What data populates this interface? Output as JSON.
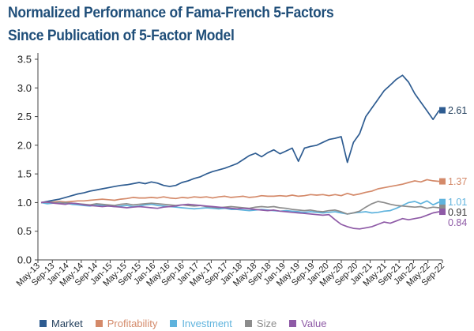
{
  "title_line1": "Normalized Performance of Fama-French 5-Factors",
  "title_line2": "Since Publication of 5-Factor Model",
  "colors": {
    "Market": "#2e5c91",
    "Profitability": "#d48a6a",
    "Investment": "#5fb3dd",
    "Size": "#8c8c8c",
    "Value": "#8e5aa6"
  },
  "chart_data": {
    "type": "line",
    "title": "Normalized Performance of Fama-French 5-Factors",
    "subtitle": "Since Publication of 5-Factor Model",
    "xlabel": "",
    "ylabel": "",
    "ylim": [
      0.0,
      3.5
    ],
    "yticks": [
      0.0,
      0.5,
      1.0,
      1.5,
      2.0,
      2.5,
      3.0,
      3.5
    ],
    "ytick_labels": [
      "0.0",
      "0.5",
      "1.0",
      "1.5",
      "2.0",
      "2.5",
      "3.0",
      "3.5"
    ],
    "xlim": [
      "May-13",
      "Sep-22"
    ],
    "xtick_labels": [
      "May-13",
      "Sep-13",
      "Jan-14",
      "May-14",
      "Sep-14",
      "Jan-15",
      "May-15",
      "Sep-15",
      "Jan-16",
      "May-16",
      "Sep-16",
      "Jan-17",
      "May-17",
      "Sep-17",
      "Jan-18",
      "May-18",
      "Sep-18",
      "Jan-19",
      "May-19",
      "Sep-19",
      "Jan-20",
      "May-20",
      "Sep-20",
      "Jan-21",
      "May-21",
      "Sep-21",
      "Jan-22",
      "May-22",
      "Sep-22"
    ],
    "grid": false,
    "legend_position": "bottom",
    "series": [
      {
        "name": "Market",
        "end_label": "2.61",
        "values": [
          1.0,
          1.02,
          1.04,
          1.06,
          1.09,
          1.12,
          1.15,
          1.17,
          1.2,
          1.22,
          1.24,
          1.26,
          1.28,
          1.3,
          1.31,
          1.33,
          1.35,
          1.33,
          1.36,
          1.34,
          1.3,
          1.28,
          1.3,
          1.35,
          1.38,
          1.42,
          1.45,
          1.5,
          1.54,
          1.57,
          1.6,
          1.64,
          1.68,
          1.75,
          1.82,
          1.86,
          1.8,
          1.87,
          1.92,
          1.85,
          1.9,
          1.95,
          1.72,
          1.95,
          1.98,
          2.0,
          2.05,
          2.1,
          2.12,
          2.15,
          1.7,
          2.05,
          2.2,
          2.5,
          2.65,
          2.8,
          2.95,
          3.05,
          3.15,
          3.22,
          3.1,
          2.9,
          2.75,
          2.6,
          2.45,
          2.61
        ]
      },
      {
        "name": "Profitability",
        "end_label": "1.37",
        "values": [
          1.0,
          1.0,
          1.01,
          1.02,
          1.01,
          1.02,
          1.03,
          1.03,
          1.04,
          1.05,
          1.06,
          1.05,
          1.04,
          1.06,
          1.07,
          1.09,
          1.08,
          1.08,
          1.09,
          1.08,
          1.1,
          1.08,
          1.07,
          1.09,
          1.08,
          1.1,
          1.09,
          1.1,
          1.08,
          1.1,
          1.11,
          1.09,
          1.1,
          1.11,
          1.09,
          1.1,
          1.12,
          1.11,
          1.11,
          1.12,
          1.11,
          1.13,
          1.11,
          1.12,
          1.14,
          1.13,
          1.14,
          1.12,
          1.14,
          1.12,
          1.16,
          1.13,
          1.15,
          1.18,
          1.2,
          1.24,
          1.26,
          1.28,
          1.3,
          1.32,
          1.35,
          1.38,
          1.36,
          1.4,
          1.38,
          1.37
        ]
      },
      {
        "name": "Investment",
        "end_label": "1.01",
        "values": [
          1.0,
          0.98,
          0.99,
          1.0,
          0.99,
          0.97,
          0.96,
          0.95,
          0.94,
          0.96,
          0.95,
          0.94,
          0.93,
          0.94,
          0.95,
          0.93,
          0.94,
          0.96,
          0.97,
          0.95,
          0.94,
          0.93,
          0.92,
          0.91,
          0.9,
          0.89,
          0.9,
          0.91,
          0.9,
          0.89,
          0.9,
          0.88,
          0.88,
          0.87,
          0.86,
          0.87,
          0.88,
          0.87,
          0.86,
          0.85,
          0.86,
          0.85,
          0.84,
          0.83,
          0.84,
          0.83,
          0.82,
          0.83,
          0.84,
          0.82,
          0.8,
          0.82,
          0.83,
          0.84,
          0.82,
          0.83,
          0.85,
          0.86,
          0.9,
          0.95,
          1.0,
          1.02,
          0.98,
          1.03,
          0.96,
          1.01
        ]
      },
      {
        "name": "Size",
        "end_label": "0.91",
        "values": [
          1.0,
          1.01,
          1.0,
          0.99,
          1.0,
          0.99,
          0.98,
          0.97,
          0.96,
          0.98,
          0.97,
          0.96,
          0.95,
          0.97,
          0.98,
          0.96,
          0.97,
          0.98,
          0.99,
          0.98,
          0.97,
          0.96,
          0.95,
          0.96,
          0.95,
          0.94,
          0.95,
          0.93,
          0.92,
          0.91,
          0.92,
          0.93,
          0.92,
          0.91,
          0.9,
          0.92,
          0.93,
          0.92,
          0.93,
          0.91,
          0.9,
          0.88,
          0.87,
          0.86,
          0.87,
          0.85,
          0.84,
          0.86,
          0.87,
          0.84,
          0.8,
          0.82,
          0.85,
          0.92,
          0.98,
          1.02,
          1.0,
          0.97,
          0.95,
          0.94,
          0.93,
          0.92,
          0.93,
          0.9,
          0.92,
          0.91
        ]
      },
      {
        "name": "Value",
        "end_label": "0.84",
        "values": [
          1.0,
          1.01,
          0.99,
          0.98,
          0.97,
          0.99,
          0.98,
          0.96,
          0.95,
          0.94,
          0.93,
          0.94,
          0.93,
          0.92,
          0.91,
          0.92,
          0.93,
          0.92,
          0.91,
          0.9,
          0.92,
          0.93,
          0.94,
          0.96,
          0.97,
          0.96,
          0.95,
          0.94,
          0.93,
          0.92,
          0.91,
          0.9,
          0.89,
          0.9,
          0.89,
          0.88,
          0.87,
          0.86,
          0.87,
          0.85,
          0.84,
          0.83,
          0.82,
          0.81,
          0.8,
          0.79,
          0.78,
          0.79,
          0.7,
          0.62,
          0.58,
          0.55,
          0.54,
          0.56,
          0.58,
          0.62,
          0.66,
          0.64,
          0.68,
          0.72,
          0.7,
          0.72,
          0.74,
          0.78,
          0.82,
          0.84
        ]
      }
    ]
  }
}
